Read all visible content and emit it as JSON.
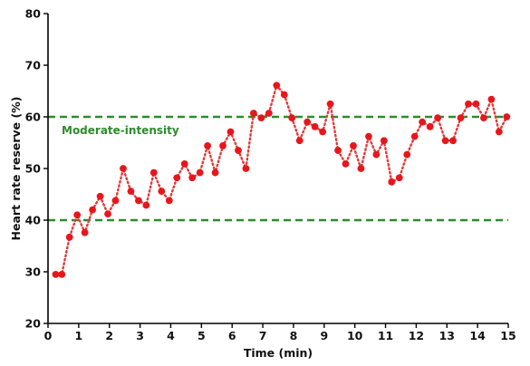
{
  "chart_data": {
    "type": "line",
    "title": "",
    "xlabel": "Time (min)",
    "ylabel": "Heart rate reserve (%)",
    "xlim": [
      0,
      15
    ],
    "ylim": [
      20,
      80
    ],
    "xticks": [
      0,
      1,
      2,
      3,
      4,
      5,
      6,
      7,
      8,
      9,
      10,
      11,
      12,
      13,
      14,
      15
    ],
    "yticks": [
      20,
      30,
      40,
      50,
      60,
      70,
      80
    ],
    "grid": false,
    "colors": {
      "series": "#e8161b",
      "line": "#e23a3a",
      "reference": "#2e8b2e",
      "axis": "#000000"
    },
    "reference_lines": [
      {
        "y": 60,
        "label": "Moderate-intensity"
      },
      {
        "y": 40,
        "label": ""
      }
    ],
    "series": [
      {
        "x": [
          0.25,
          0.45,
          0.7,
          0.95,
          1.2,
          1.45,
          1.7,
          1.95,
          2.2,
          2.45,
          2.7,
          2.95,
          3.2,
          3.45,
          3.7,
          3.95,
          4.2,
          4.45,
          4.7,
          4.95,
          5.2,
          5.45,
          5.7,
          5.95,
          6.2,
          6.45,
          6.7,
          6.95,
          7.2,
          7.45,
          7.7,
          7.95,
          8.2,
          8.45,
          8.7,
          8.95,
          9.2,
          9.45,
          9.7,
          9.95,
          10.2,
          10.45,
          10.7,
          10.95,
          11.2,
          11.45,
          11.7,
          11.95,
          12.2,
          12.45,
          12.7,
          12.95,
          13.2,
          13.45,
          13.7,
          13.95,
          14.2,
          14.45,
          14.7,
          14.95
        ],
        "values": [
          29.5,
          29.5,
          36.7,
          41.0,
          37.6,
          42.0,
          44.6,
          41.2,
          43.8,
          50.0,
          45.6,
          43.8,
          42.9,
          49.2,
          45.6,
          43.8,
          48.2,
          50.9,
          48.2,
          49.2,
          54.4,
          49.2,
          54.4,
          57.1,
          53.5,
          50.0,
          60.7,
          59.8,
          60.7,
          66.1,
          64.3,
          59.8,
          55.4,
          59.0,
          58.1,
          57.1,
          62.5,
          53.5,
          50.9,
          54.4,
          50.0,
          56.2,
          52.7,
          55.4,
          47.4,
          48.2,
          52.7,
          56.2,
          59.0,
          58.1,
          59.8,
          55.4,
          55.4,
          59.8,
          62.5,
          62.5,
          59.8,
          63.4,
          57.1,
          60.0
        ]
      }
    ]
  }
}
